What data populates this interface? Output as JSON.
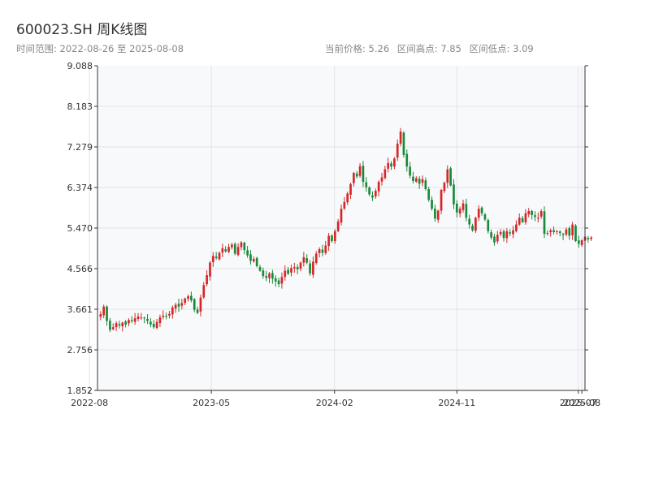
{
  "header": {
    "title": "600023.SH 周K线图",
    "date_range": "时间范围: 2022-08-26 至 2025-08-08",
    "current_price": "当前价格: 5.26",
    "range_high": "区间高点: 7.85",
    "range_low": "区间低点: 3.09"
  },
  "colors": {
    "up": "#d62728",
    "down": "#1a8a3a",
    "plot_bg": "#f8f9fb",
    "grid": "#e2e4e8",
    "axis": "#333333"
  },
  "chart_data": {
    "type": "candlestick",
    "title": "600023.SH 周K线图",
    "xlabel": "",
    "ylabel": "",
    "grid": true,
    "ylim": [
      1.852,
      9.088
    ],
    "yticks": [
      "1.852",
      "2.756",
      "3.661",
      "4.566",
      "5.470",
      "6.374",
      "7.279",
      "8.183",
      "9.088"
    ],
    "xlim": [
      "2022-08-19",
      "2025-08-15"
    ],
    "xticks": [
      {
        "date": "2022-08-01",
        "label": "2022-08"
      },
      {
        "date": "2023-05-01",
        "label": "2023-05"
      },
      {
        "date": "2024-02-01",
        "label": "2024-02"
      },
      {
        "date": "2024-11-01",
        "label": "2024-11"
      },
      {
        "date": "2025-07-31",
        "label": "2025-07"
      },
      {
        "date": "2025-08-08",
        "label": "2025-08"
      }
    ],
    "start_date": "2022-08-26",
    "interval_days": 7,
    "closes": [
      3.55,
      3.72,
      3.4,
      3.2,
      3.26,
      3.35,
      3.3,
      3.36,
      3.32,
      3.42,
      3.4,
      3.46,
      3.5,
      3.48,
      3.46,
      3.4,
      3.32,
      3.26,
      3.38,
      3.48,
      3.52,
      3.5,
      3.56,
      3.7,
      3.76,
      3.72,
      3.8,
      3.9,
      3.95,
      3.86,
      3.65,
      3.58,
      3.92,
      4.2,
      4.42,
      4.7,
      4.85,
      4.8,
      4.92,
      5.02,
      4.95,
      5.05,
      5.1,
      4.9,
      5.05,
      5.15,
      4.98,
      4.86,
      4.74,
      4.78,
      4.62,
      4.52,
      4.4,
      4.36,
      4.46,
      4.34,
      4.28,
      4.22,
      4.38,
      4.52,
      4.45,
      4.58,
      4.6,
      4.55,
      4.7,
      4.82,
      4.7,
      4.46,
      4.72,
      4.9,
      5.0,
      4.92,
      5.08,
      5.3,
      5.18,
      5.4,
      5.62,
      5.9,
      6.05,
      6.24,
      6.45,
      6.7,
      6.62,
      6.85,
      6.5,
      6.38,
      6.22,
      6.15,
      6.3,
      6.5,
      6.6,
      6.78,
      6.92,
      6.84,
      7.02,
      7.35,
      7.62,
      7.1,
      6.84,
      6.64,
      6.52,
      6.58,
      6.46,
      6.56,
      6.34,
      6.1,
      5.9,
      5.68,
      5.86,
      6.32,
      6.48,
      6.78,
      6.42,
      6.0,
      5.82,
      5.9,
      6.02,
      5.7,
      5.55,
      5.42,
      5.7,
      5.9,
      5.8,
      5.66,
      5.4,
      5.26,
      5.15,
      5.32,
      5.38,
      5.25,
      5.4,
      5.35,
      5.42,
      5.55,
      5.7,
      5.6,
      5.8,
      5.85,
      5.76,
      5.72,
      5.7,
      5.85,
      5.34,
      5.36,
      5.42,
      5.38,
      5.4,
      5.36,
      5.32,
      5.44,
      5.3,
      5.55,
      5.18,
      5.12,
      5.2,
      5.28,
      5.22,
      5.26
    ]
  }
}
